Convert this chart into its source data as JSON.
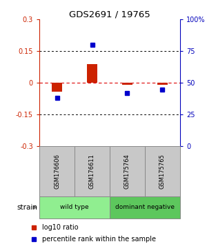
{
  "title": "GDS2691 / 19765",
  "samples": [
    "GSM176606",
    "GSM176611",
    "GSM175764",
    "GSM175765"
  ],
  "log10_ratio": [
    -0.04,
    0.09,
    -0.01,
    -0.01
  ],
  "percentile_rank": [
    38,
    80,
    42,
    45
  ],
  "ylim_left": [
    -0.3,
    0.3
  ],
  "ylim_right": [
    0,
    100
  ],
  "yticks_left": [
    -0.3,
    -0.15,
    0.0,
    0.15,
    0.3
  ],
  "yticks_right": [
    0,
    25,
    50,
    75,
    100
  ],
  "ytick_labels_left": [
    "-0.3",
    "-0.15",
    "0",
    "0.15",
    "0.3"
  ],
  "ytick_labels_right": [
    "0",
    "25",
    "50",
    "75",
    "100%"
  ],
  "strain_groups": [
    {
      "label": "wild type",
      "cols": [
        0,
        1
      ],
      "color": "#90EE90"
    },
    {
      "label": "dominant negative",
      "cols": [
        2,
        3
      ],
      "color": "#5DC75D"
    }
  ],
  "bar_color_red": "#CC2200",
  "bar_color_blue": "#0000CC",
  "left_tick_color": "#CC2200",
  "right_tick_color": "#0000BB",
  "bg_color": "#FFFFFF",
  "sample_box_color": "#C8C8C8",
  "sample_box_border": "#888888",
  "strain_label": "strain",
  "legend_label_red": "log10 ratio",
  "legend_label_blue": "percentile rank within the sample"
}
